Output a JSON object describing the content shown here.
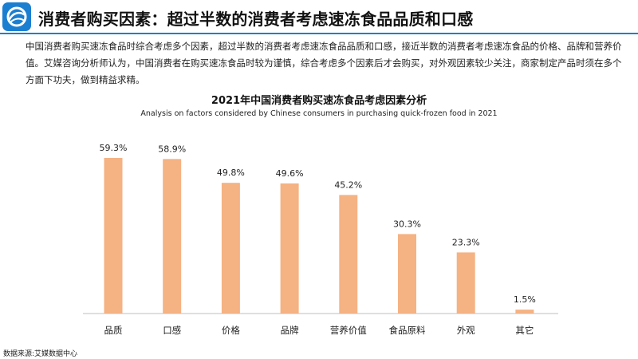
{
  "header": {
    "logo_icon": "circular-swirl-logo-icon",
    "title": "消费者购买因素：超过半数的消费者考虑速冻食品品质和口感"
  },
  "intro": "中国消费者购买速冻食品时综合考虑多个因素，超过半数的消费者考虑速冻食品品质和口感，接近半数的消费者考虑速冻食品的价格、品牌和营养价值。艾媒咨询分析师认为，中国消费者在购买速冻食品时较为谨慎，综合考虑多个因素后才会购买，对外观因素较少关注，商家制定产品时须在多个方面下功夫，做到精益求精。",
  "chart_data": {
    "type": "bar",
    "title": "2021年中国消费者购买速冻食品考虑因素分析",
    "subtitle": "Analysis on factors considered by Chinese consumers in purchasing quick-frozen food in 2021",
    "categories": [
      "品质",
      "口感",
      "价格",
      "品牌",
      "营养价值",
      "食品原料",
      "外观",
      "其它"
    ],
    "values": [
      59.3,
      58.9,
      49.8,
      49.6,
      45.2,
      30.3,
      23.3,
      1.5
    ],
    "value_labels": [
      "59.3%",
      "58.9%",
      "49.8%",
      "49.6%",
      "45.2%",
      "30.3%",
      "23.3%",
      "1.5%"
    ],
    "unit": "%",
    "ylim": [
      0,
      59.3
    ],
    "bar_color": "#f5b283",
    "axis_color": "#bfbfbf",
    "grid": false,
    "legend": "none"
  },
  "footer": {
    "source": "数据来源:艾媒数据中心"
  }
}
